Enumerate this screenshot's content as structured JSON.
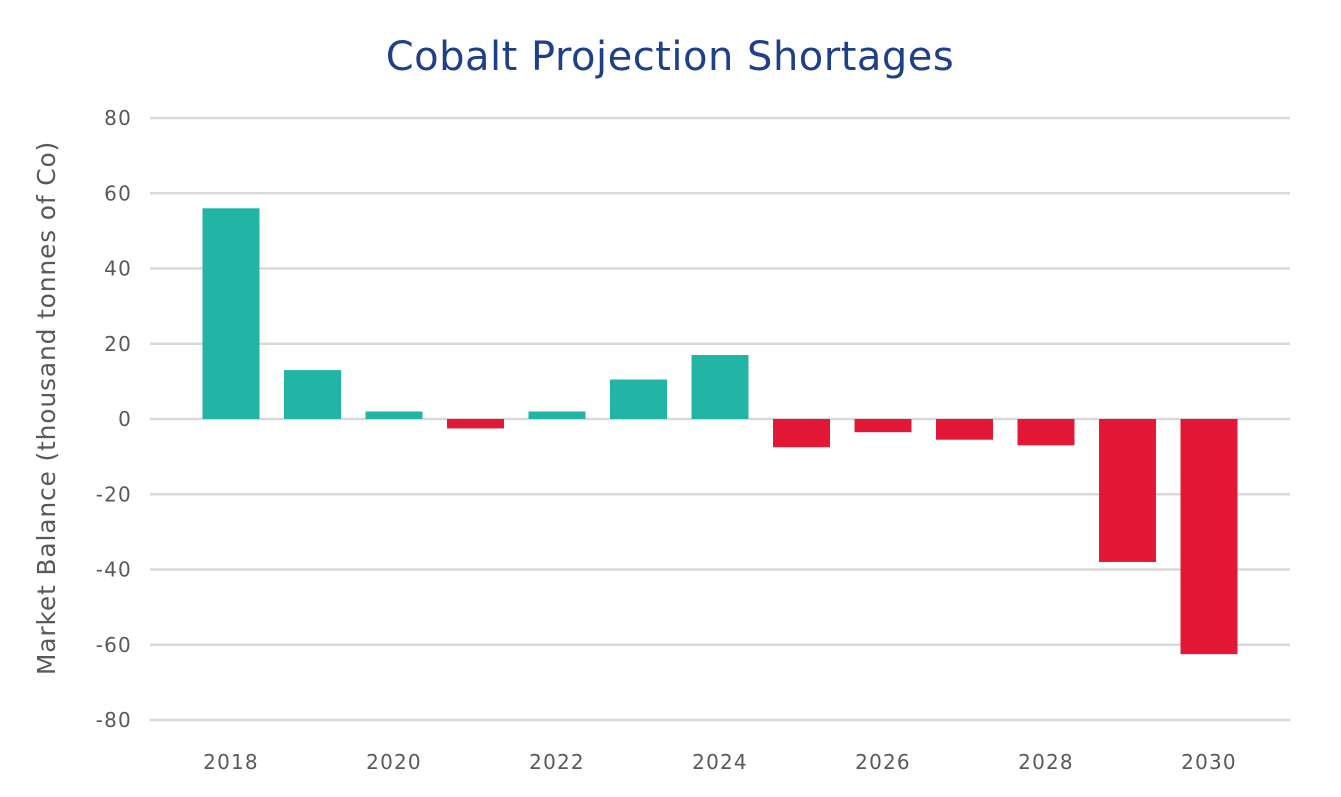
{
  "chart_data": {
    "type": "bar",
    "title": "Cobalt Projection Shortages",
    "xlabel": "",
    "ylabel": "Market Balance (thousand tonnes of Co)",
    "categories": [
      "2018",
      "2019",
      "2020",
      "2021",
      "2022",
      "2023",
      "2024",
      "2025",
      "2026",
      "2027",
      "2028",
      "2029",
      "2030"
    ],
    "x_tick_labels": [
      "2018",
      "",
      "2020",
      "",
      "2022",
      "",
      "2024",
      "",
      "2026",
      "",
      "2028",
      "",
      "2030"
    ],
    "series": [
      {
        "values": [
          56,
          13,
          2,
          -2.5,
          2,
          10.5,
          17,
          -7.5,
          -3.5,
          -5.5,
          -7,
          -38,
          -62.5
        ]
      }
    ],
    "ylim": [
      -80,
      80
    ],
    "y_ticks": [
      80,
      60,
      40,
      20,
      0,
      -20,
      -40,
      -60,
      -80
    ],
    "grid": true,
    "legend": "none",
    "colors": {
      "positive": "#22b5a5",
      "negative": "#e31837",
      "title": "#1f3f86",
      "grid": "#d9d9d9",
      "text": "#595959"
    }
  }
}
